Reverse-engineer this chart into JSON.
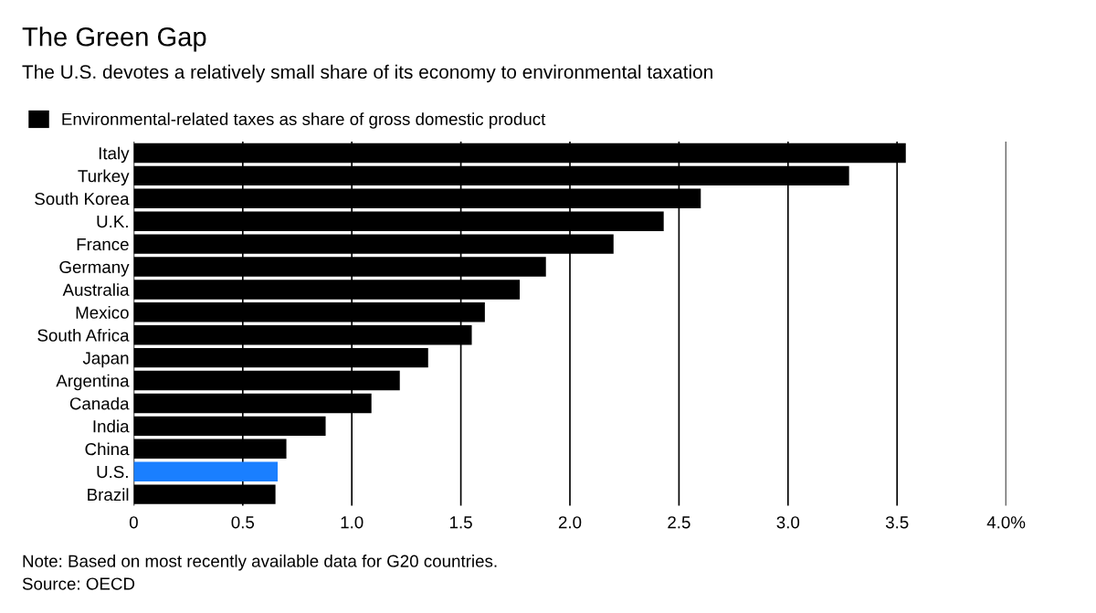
{
  "chart_data": {
    "type": "bar",
    "orientation": "horizontal",
    "title": "The Green Gap",
    "subtitle": "The U.S. devotes a relatively small share of its economy to environmental taxation",
    "categories": [
      "Italy",
      "Turkey",
      "South Korea",
      "U.K.",
      "France",
      "Germany",
      "Australia",
      "Mexico",
      "South Africa",
      "Japan",
      "Argentina",
      "Canada",
      "India",
      "China",
      "U.S.",
      "Brazil"
    ],
    "series": [
      {
        "name": "Environmental-related taxes as share of gross domestic product",
        "color": "#000000",
        "values": [
          3.54,
          3.28,
          2.6,
          2.43,
          2.2,
          1.89,
          1.77,
          1.61,
          1.55,
          1.35,
          1.22,
          1.09,
          0.88,
          0.7,
          0.66,
          0.65
        ],
        "colors": [
          "#000000",
          "#000000",
          "#000000",
          "#000000",
          "#000000",
          "#000000",
          "#000000",
          "#000000",
          "#000000",
          "#000000",
          "#000000",
          "#000000",
          "#000000",
          "#000000",
          "#1a7fff",
          "#000000"
        ]
      }
    ],
    "xlim": [
      0,
      4
    ],
    "xticks": [
      0,
      0.5,
      {
        "value": 1,
        "label": "1.0"
      },
      1.5,
      {
        "value": 2,
        "label": "2.0"
      },
      2.5,
      {
        "value": 3,
        "label": "3.0"
      },
      3.5,
      {
        "value": 4,
        "label": "4.0%"
      }
    ],
    "grid": "x",
    "legend": "top left",
    "annotations": [
      "Note: Based on most recently available data for G20 countries.",
      "Source: OECD"
    ]
  }
}
